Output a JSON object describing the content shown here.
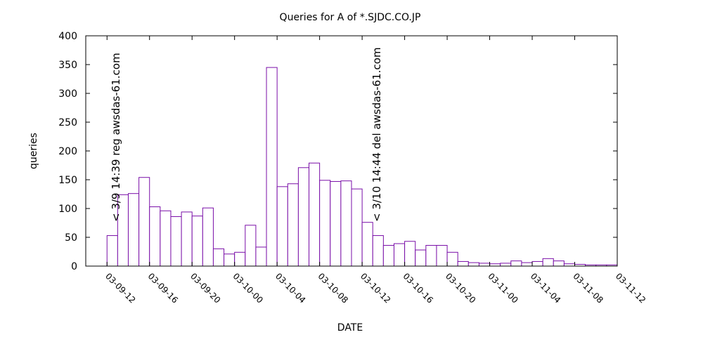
{
  "chart_data": {
    "type": "bar",
    "title": "Queries for A of *.SJDC.CO.JP",
    "xlabel": "DATE",
    "ylabel": "queries",
    "ylim": [
      0,
      400
    ],
    "yticks": [
      0,
      50,
      100,
      150,
      200,
      250,
      300,
      350,
      400
    ],
    "xlim": [
      "03-09-10",
      "03-11-12"
    ],
    "xticks": [
      "03-09-12",
      "03-09-16",
      "03-09-20",
      "03-10-00",
      "03-10-04",
      "03-10-08",
      "03-10-12",
      "03-10-16",
      "03-10-20",
      "03-11-00",
      "03-11-04",
      "03-11-08",
      "03-11-12"
    ],
    "bin_hours": 1,
    "bar_color": "#7a0fa8",
    "x": [
      "03-09-12",
      "03-09-13",
      "03-09-14",
      "03-09-15",
      "03-09-16",
      "03-09-17",
      "03-09-18",
      "03-09-19",
      "03-09-20",
      "03-09-21",
      "03-09-22",
      "03-09-23",
      "03-10-00",
      "03-10-01",
      "03-10-02",
      "03-10-03",
      "03-10-04",
      "03-10-05",
      "03-10-06",
      "03-10-07",
      "03-10-08",
      "03-10-09",
      "03-10-10",
      "03-10-11",
      "03-10-12",
      "03-10-13",
      "03-10-14",
      "03-10-15",
      "03-10-16",
      "03-10-17",
      "03-10-18",
      "03-10-19",
      "03-10-20",
      "03-10-21",
      "03-10-22",
      "03-10-23",
      "03-11-00",
      "03-11-01",
      "03-11-02",
      "03-11-03",
      "03-11-04",
      "03-11-05",
      "03-11-06",
      "03-11-07",
      "03-11-08",
      "03-11-09",
      "03-11-10",
      "03-11-11"
    ],
    "values": [
      53,
      124,
      126,
      154,
      103,
      96,
      86,
      94,
      87,
      101,
      30,
      21,
      24,
      71,
      33,
      345,
      138,
      143,
      171,
      179,
      149,
      147,
      148,
      134,
      76,
      53,
      36,
      39,
      43,
      28,
      36,
      36,
      24,
      8,
      6,
      5,
      4,
      5,
      9,
      6,
      8,
      13,
      9,
      4,
      3,
      2,
      2,
      2
    ],
    "annotations": [
      {
        "x": "03-09-14 14:39",
        "text": "< 3/9 14:39 reg awsdas-61.com"
      },
      {
        "x": "03-10-14 14:44",
        "text": "< 3/10 14:44 del awsdas-61.com"
      }
    ]
  }
}
